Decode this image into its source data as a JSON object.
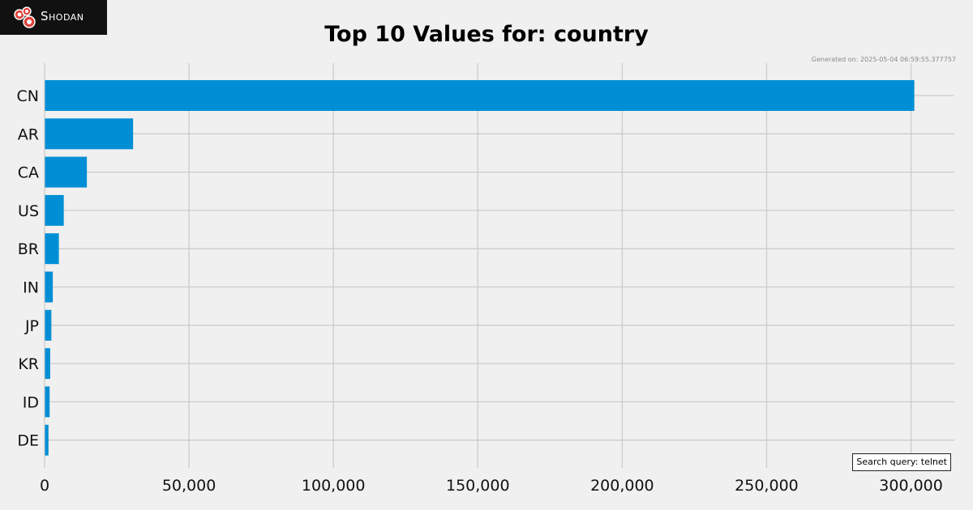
{
  "brand": {
    "name": "Shodan",
    "logo_icon": "shodan-logo-icon"
  },
  "generated_text": "Generated on: 2025-05-04 06:59:55.377757",
  "search_query_text": "Search query: telnet",
  "chart_data": {
    "type": "bar",
    "orientation": "horizontal",
    "title": "Top 10 Values for: country",
    "xlabel": "",
    "ylabel": "",
    "categories": [
      "CN",
      "AR",
      "CA",
      "US",
      "BR",
      "IN",
      "JP",
      "KR",
      "ID",
      "DE"
    ],
    "values": [
      301000,
      30500,
      14500,
      6500,
      4800,
      2700,
      2200,
      1800,
      1600,
      1200
    ],
    "xlim": [
      0,
      315000
    ],
    "xticks": [
      0,
      50000,
      100000,
      150000,
      200000,
      250000,
      300000
    ],
    "xtick_labels": [
      "0",
      "50,000",
      "100,000",
      "150,000",
      "200,000",
      "250,000",
      "300,000"
    ],
    "grid": true,
    "bar_color": "#008fd5",
    "background_color": "#f0f0f0",
    "grid_color": "#cbcbcb"
  }
}
